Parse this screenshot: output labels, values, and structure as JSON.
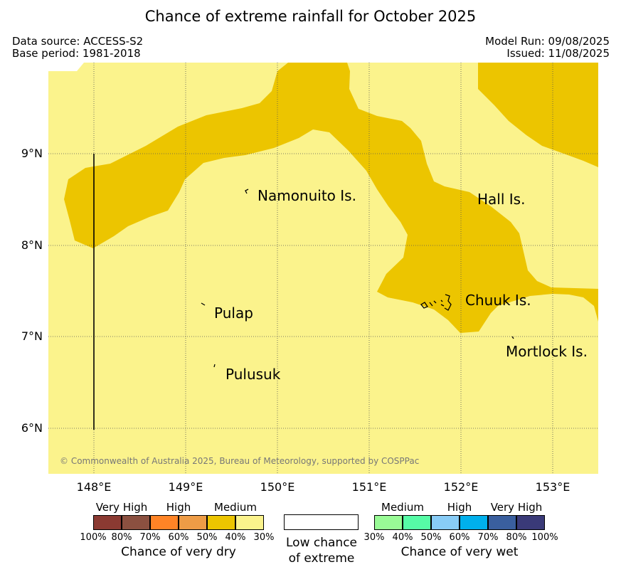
{
  "title": "Chance of extreme rainfall for October 2025",
  "data_source": "Data source: ACCESS-S2",
  "base_period": "Base period: 1981-2018",
  "model_run": "Model Run: 09/08/2025",
  "issued": "Issued: 11/08/2025",
  "copyright": "© Commonwealth of Australia 2025, Bureau of Meteorology, supported by COSPPac",
  "map": {
    "lat_labels": [
      "9°N",
      "8°N",
      "7°N",
      "6°N"
    ],
    "lon_labels": [
      "148°E",
      "149°E",
      "150°E",
      "151°E",
      "152°E",
      "153°E"
    ],
    "extent": {
      "lon_min": 147.5,
      "lon_max": 153.5,
      "lat_min": 5.5,
      "lat_max": 10.0
    },
    "places": [
      {
        "name": "Namonuito Is."
      },
      {
        "name": "Hall Is."
      },
      {
        "name": "Chuuk Is."
      },
      {
        "name": "Pulap"
      },
      {
        "name": "Mortlock Is."
      },
      {
        "name": "Pulusuk"
      }
    ],
    "colors": {
      "dry_30_40": "#fbf38c",
      "dry_40_50": "#ecc500",
      "grid": "#555555"
    }
  },
  "legend": {
    "dry": {
      "headers": [
        "Very High",
        "High",
        "Medium"
      ],
      "ticks": [
        "100%",
        "80%",
        "70%",
        "60%",
        "50%",
        "40%",
        "30%"
      ],
      "colors": [
        "#8b3a32",
        "#8b5040",
        "#ff8426",
        "#ee9c46",
        "#ecc500",
        "#fbf38c"
      ],
      "caption": "Chance of very dry"
    },
    "low": {
      "line1": "Low chance",
      "line2": "of extreme"
    },
    "wet": {
      "headers": [
        "Medium",
        "High",
        "Very High"
      ],
      "ticks": [
        "30%",
        "40%",
        "50%",
        "60%",
        "70%",
        "80%",
        "100%"
      ],
      "colors": [
        "#99fb96",
        "#56fba6",
        "#88ccf6",
        "#00b0ec",
        "#3a5f9e",
        "#3a3a78"
      ],
      "caption": "Chance of very wet"
    }
  }
}
